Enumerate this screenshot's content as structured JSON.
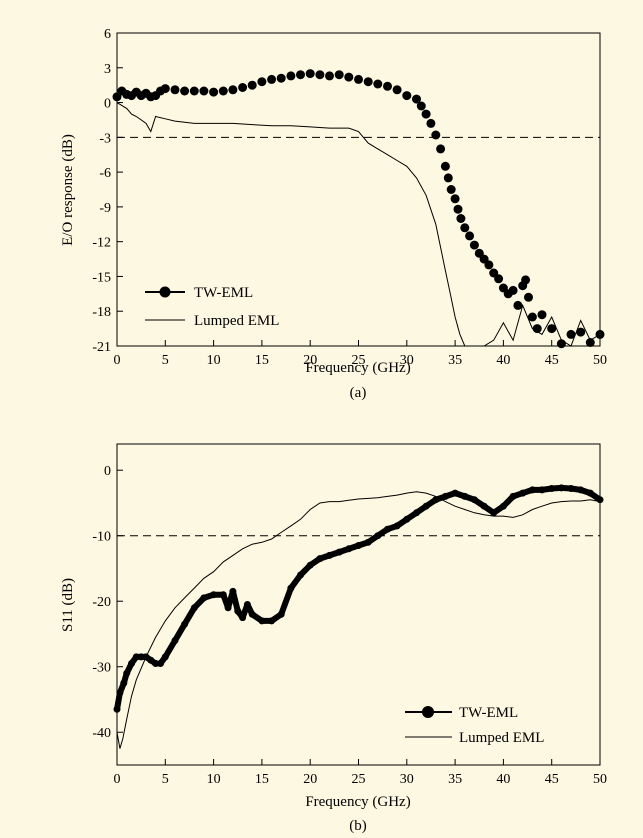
{
  "colors": {
    "background": "#fdf8e1",
    "ink": "#000000"
  },
  "chart_data": [
    {
      "panel": "(a)",
      "type": "line",
      "title": "",
      "xlabel": "Frequency (GHz)",
      "ylabel": "E/O response (dB)",
      "xlim": [
        0,
        50
      ],
      "ylim": [
        -21,
        6
      ],
      "xticks": [
        0,
        5,
        10,
        15,
        20,
        25,
        30,
        35,
        40,
        45,
        50
      ],
      "yticks": [
        6,
        3,
        0,
        -3,
        -6,
        -9,
        -12,
        -15,
        -18,
        -21
      ],
      "grid": false,
      "legend_position": "bottom-left",
      "reference_lines": [
        {
          "y": -3,
          "style": "dashed"
        }
      ],
      "series": [
        {
          "name": "TW-EML",
          "style": "filled-circle markers",
          "x": [
            0,
            0.5,
            1,
            1.5,
            2,
            2.5,
            3,
            3.5,
            4,
            4.5,
            5,
            6,
            7,
            8,
            9,
            10,
            11,
            12,
            13,
            14,
            15,
            16,
            17,
            18,
            19,
            20,
            21,
            22,
            23,
            24,
            25,
            26,
            27,
            28,
            29,
            30,
            31,
            31.5,
            32,
            32.5,
            33,
            33.5,
            34,
            34.3,
            34.6,
            35,
            35.3,
            35.6,
            36,
            36.5,
            37,
            37.5,
            38,
            38.5,
            39,
            39.5,
            40,
            40.5,
            41,
            41.5,
            42,
            42.3,
            42.6,
            43,
            43.5,
            44,
            45,
            46,
            47,
            48,
            49,
            50
          ],
          "y": [
            0.5,
            1,
            0.7,
            0.6,
            0.9,
            0.6,
            0.8,
            0.5,
            0.6,
            1,
            1.2,
            1.1,
            1,
            1,
            1,
            0.9,
            1,
            1.1,
            1.3,
            1.5,
            1.8,
            2,
            2.1,
            2.3,
            2.4,
            2.5,
            2.4,
            2.3,
            2.4,
            2.2,
            2,
            1.8,
            1.6,
            1.4,
            1.1,
            0.6,
            0.3,
            -0.3,
            -1,
            -1.8,
            -2.8,
            -4,
            -5.5,
            -6.5,
            -7.5,
            -8.3,
            -9.2,
            -10,
            -10.8,
            -11.5,
            -12.3,
            -13,
            -13.5,
            -14,
            -14.7,
            -15.2,
            -16,
            -16.5,
            -16.2,
            -17.5,
            -15.8,
            -15.3,
            -16.8,
            -18.5,
            -19.5,
            -18.3,
            -19.5,
            -20.8,
            -20,
            -19.8,
            -20.7,
            -20
          ]
        },
        {
          "name": "Lumped EML",
          "style": "thin line",
          "x": [
            0,
            1,
            1.5,
            2,
            2.5,
            3,
            3.5,
            4,
            5,
            6,
            8,
            10,
            12,
            14,
            16,
            18,
            20,
            22,
            24,
            25,
            26,
            27,
            28,
            29,
            30,
            31,
            32,
            33,
            33.5,
            34,
            34.5,
            35,
            35.5,
            36,
            36.5,
            37,
            38,
            39,
            40,
            41,
            42,
            43,
            44,
            45,
            46,
            47,
            48,
            49,
            50
          ],
          "y": [
            0,
            -0.5,
            -1,
            -1.2,
            -1.5,
            -1.8,
            -2.5,
            -1.2,
            -1.4,
            -1.6,
            -1.8,
            -1.8,
            -1.8,
            -1.9,
            -2,
            -2,
            -2.1,
            -2.2,
            -2.2,
            -2.5,
            -3.5,
            -4,
            -4.5,
            -5,
            -5.5,
            -6.5,
            -8,
            -10.5,
            -12.5,
            -14.5,
            -16.5,
            -18.5,
            -20,
            -21,
            -21,
            -21,
            -21,
            -20.5,
            -19,
            -20.5,
            -17.5,
            -19.5,
            -20,
            -18.5,
            -20.5,
            -21,
            -18.8,
            -20.5,
            -20
          ]
        }
      ]
    },
    {
      "panel": "(b)",
      "type": "line",
      "title": "",
      "xlabel": "Frequency (GHz)",
      "ylabel": "S11 (dB)",
      "xlim": [
        0,
        50
      ],
      "ylim": [
        -45,
        4
      ],
      "xticks": [
        0,
        5,
        10,
        15,
        20,
        25,
        30,
        35,
        40,
        45,
        50
      ],
      "yticks": [
        0,
        -10,
        -20,
        -30,
        -40
      ],
      "tick_labels_y": [
        "0",
        "-10",
        "-20",
        "-30",
        "-40"
      ],
      "grid": false,
      "legend_position": "bottom-right",
      "reference_lines": [
        {
          "y": -10,
          "style": "dashed"
        }
      ],
      "series": [
        {
          "name": "TW-EML",
          "style": "thick marker line",
          "x": [
            0,
            0.3,
            0.7,
            1,
            1.5,
            2,
            2.5,
            3,
            3.5,
            4,
            4.5,
            5,
            6,
            7,
            8,
            9,
            10,
            11,
            11.5,
            12,
            12.5,
            13,
            13.5,
            14,
            15,
            16,
            17,
            18,
            19,
            20,
            21,
            22,
            23,
            24,
            25,
            26,
            27,
            28,
            29,
            30,
            31,
            32,
            33,
            34,
            35,
            36,
            37,
            38,
            39,
            40,
            41,
            42,
            43,
            44,
            45,
            46,
            47,
            48,
            49,
            50
          ],
          "y": [
            -36.5,
            -34,
            -32.5,
            -31,
            -29.5,
            -28.5,
            -28.5,
            -28.5,
            -29,
            -29.5,
            -29.5,
            -28.5,
            -26,
            -23.5,
            -21,
            -19.5,
            -19,
            -19,
            -21,
            -18.5,
            -21.5,
            -22.5,
            -20.5,
            -22,
            -23,
            -23,
            -22,
            -18,
            -16,
            -14.5,
            -13.5,
            -13,
            -12.5,
            -12,
            -11.5,
            -11,
            -10,
            -9,
            -8.5,
            -7.5,
            -6.5,
            -5.5,
            -4.5,
            -4,
            -3.5,
            -4,
            -4.5,
            -5.5,
            -6.5,
            -5.5,
            -4,
            -3.5,
            -3,
            -3,
            -2.8,
            -2.7,
            -2.8,
            -3,
            -3.5,
            -4.5
          ]
        },
        {
          "name": "Lumped EML",
          "style": "thin line",
          "x": [
            0,
            0.3,
            0.6,
            1,
            1.5,
            2,
            3,
            4,
            5,
            6,
            7,
            8,
            9,
            10,
            11,
            12,
            13,
            14,
            15,
            16,
            17,
            18,
            19,
            20,
            21,
            22,
            23,
            24,
            25,
            26,
            27,
            28,
            29,
            30,
            31,
            32,
            33,
            34,
            35,
            36,
            37,
            38,
            39,
            40,
            41,
            42,
            43,
            44,
            45,
            46,
            47,
            48,
            49,
            50
          ],
          "y": [
            -40,
            -42.5,
            -41,
            -38,
            -34.5,
            -32,
            -28.5,
            -25.5,
            -23,
            -21,
            -19.5,
            -18,
            -16.5,
            -15.5,
            -14,
            -13,
            -12,
            -11.3,
            -11,
            -10.5,
            -9.5,
            -8.5,
            -7.5,
            -6,
            -5,
            -4.8,
            -4.8,
            -4.6,
            -4.4,
            -4.3,
            -4.2,
            -4,
            -3.8,
            -3.5,
            -3.3,
            -3.5,
            -4,
            -4.8,
            -5.5,
            -6,
            -6.5,
            -6.8,
            -7,
            -7,
            -7.2,
            -6.8,
            -6,
            -5.5,
            -5,
            -4.8,
            -4.7,
            -4.7,
            -4.5,
            -4.8
          ]
        }
      ]
    }
  ]
}
